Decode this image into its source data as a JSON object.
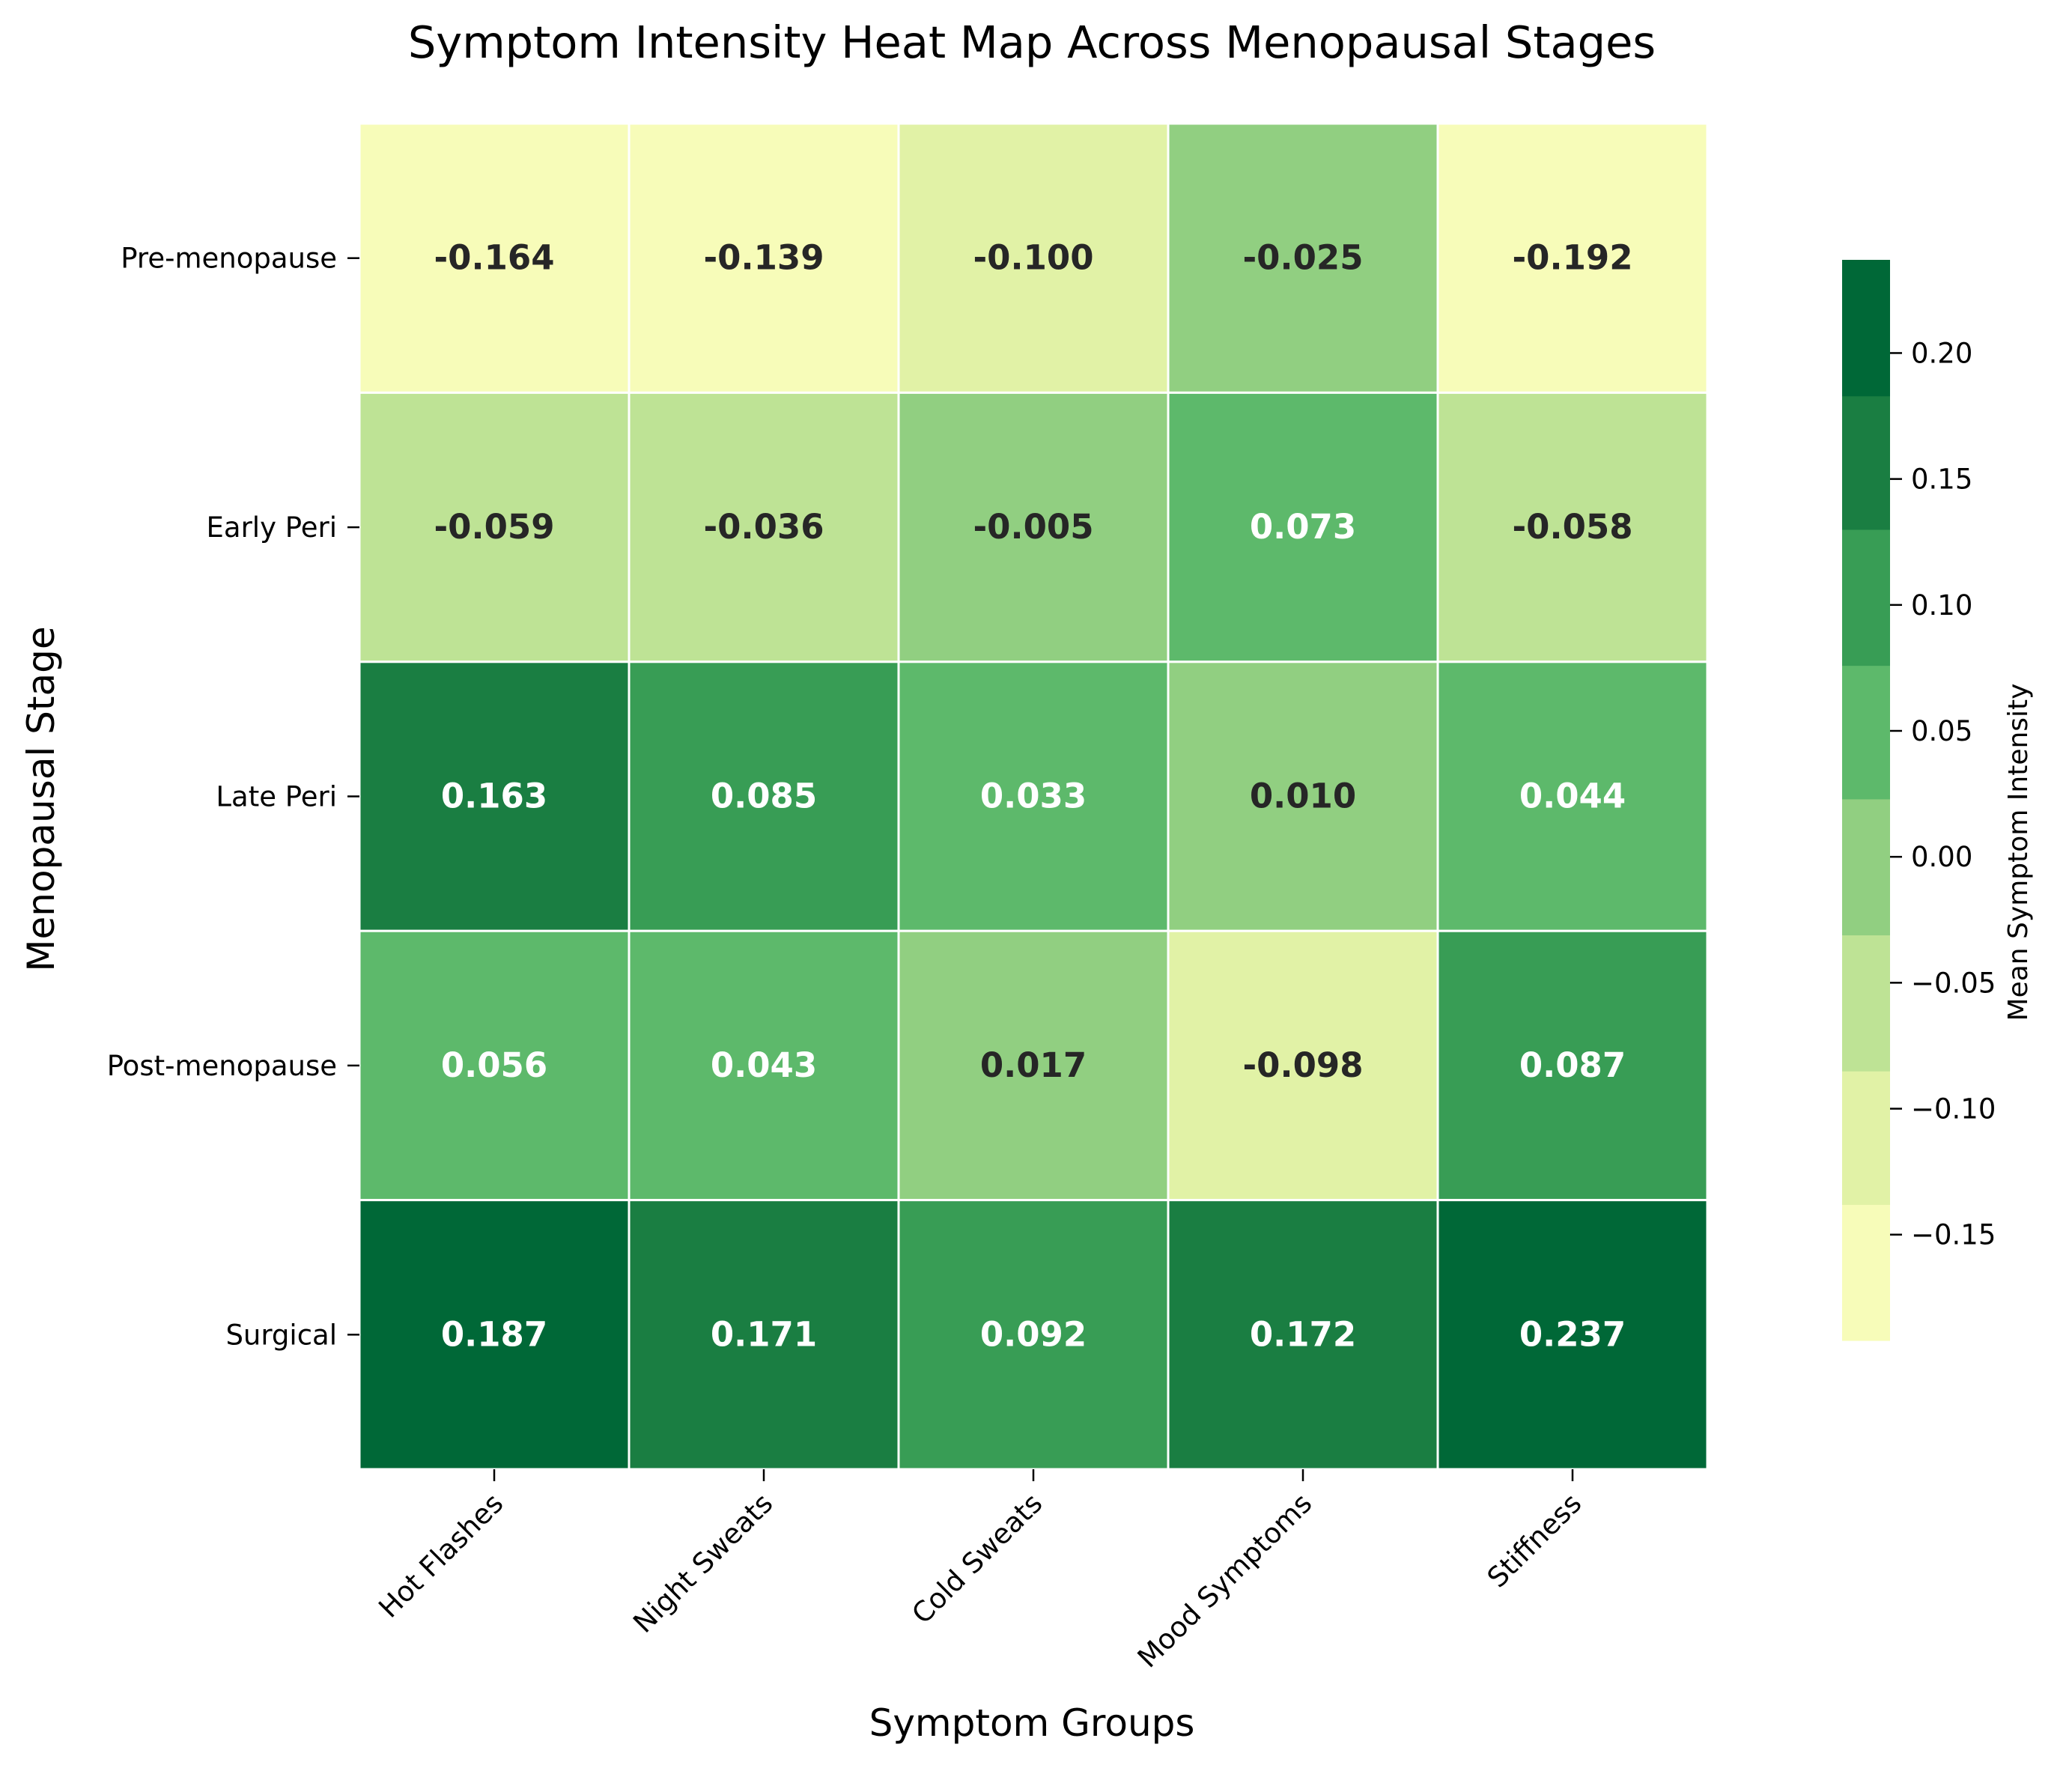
{
  "chart_data": {
    "type": "heatmap",
    "title": "Symptom Intensity Heat Map Across Menopausal Stages",
    "xlabel": "Symptom Groups",
    "ylabel": "Menopausal Stage",
    "x_categories": [
      "Hot Flashes",
      "Night Sweats",
      "Cold Sweats",
      "Mood Symptoms",
      "Stiffness"
    ],
    "y_categories": [
      "Pre-menopause",
      "Early Peri",
      "Late Peri",
      "Post-menopause",
      "Surgical"
    ],
    "values": [
      [
        -0.164,
        -0.139,
        -0.1,
        -0.025,
        -0.192
      ],
      [
        -0.059,
        -0.036,
        -0.005,
        0.073,
        -0.058
      ],
      [
        0.163,
        0.085,
        0.033,
        0.01,
        0.044
      ],
      [
        0.056,
        0.043,
        0.017,
        -0.098,
        0.087
      ],
      [
        0.187,
        0.171,
        0.092,
        0.172,
        0.237
      ]
    ],
    "cell_labels": [
      [
        "-0.164",
        "-0.139",
        "-0.100",
        "-0.025",
        "-0.192"
      ],
      [
        "-0.059",
        "-0.036",
        "-0.005",
        "0.073",
        "-0.058"
      ],
      [
        "0.163",
        "0.085",
        "0.033",
        "0.010",
        "0.044"
      ],
      [
        "0.056",
        "0.043",
        "0.017",
        "-0.098",
        "0.087"
      ],
      [
        "0.187",
        "0.171",
        "0.092",
        "0.172",
        "0.237"
      ]
    ],
    "colorbar": {
      "label": "Mean Symptom Intensity",
      "range": [
        -0.192,
        0.237
      ],
      "ticks": [
        0.2,
        0.15,
        0.1,
        0.05,
        0.0,
        -0.05,
        -0.1,
        -0.15
      ],
      "tick_labels": [
        "0.20",
        "0.15",
        "0.10",
        "0.05",
        "0.00",
        "−0.05",
        "−0.10",
        "−0.15"
      ],
      "bands": [
        {
          "min": -0.192,
          "max": -0.138,
          "color": "#f7fcb9"
        },
        {
          "min": -0.138,
          "max": -0.085,
          "color": "#e1f2a6"
        },
        {
          "min": -0.085,
          "max": -0.031,
          "color": "#bee395"
        },
        {
          "min": -0.031,
          "max": 0.023,
          "color": "#91cf81"
        },
        {
          "min": 0.023,
          "max": 0.076,
          "color": "#5db96b"
        },
        {
          "min": 0.076,
          "max": 0.13,
          "color": "#389d55"
        },
        {
          "min": 0.13,
          "max": 0.183,
          "color": "#1a7e42"
        },
        {
          "min": 0.183,
          "max": 0.237,
          "color": "#006837"
        }
      ]
    },
    "label_colors": {
      "dark": "#262626",
      "light": "#ffffff"
    },
    "grid_line_color": "#ffffff"
  }
}
